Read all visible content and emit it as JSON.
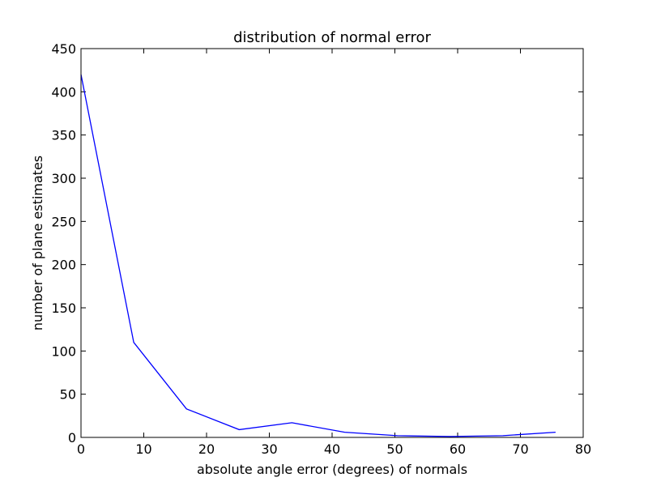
{
  "chart_data": {
    "type": "line",
    "title": "distribution of normal error",
    "xlabel": "absolute angle error (degrees) of normals",
    "ylabel": "number of plane estimates",
    "xlim": [
      0,
      80
    ],
    "ylim": [
      0,
      450
    ],
    "xticks": [
      0,
      10,
      20,
      30,
      40,
      50,
      60,
      70,
      80
    ],
    "yticks": [
      0,
      50,
      100,
      150,
      200,
      250,
      300,
      350,
      400,
      450
    ],
    "grid": false,
    "series": [
      {
        "color": "#0000ff",
        "x": [
          0,
          8.4,
          16.8,
          25.2,
          33.6,
          42.0,
          50.4,
          58.8,
          67.2,
          75.6
        ],
        "y": [
          420,
          110,
          33,
          9,
          17,
          6,
          2,
          1,
          2,
          6
        ]
      }
    ]
  }
}
